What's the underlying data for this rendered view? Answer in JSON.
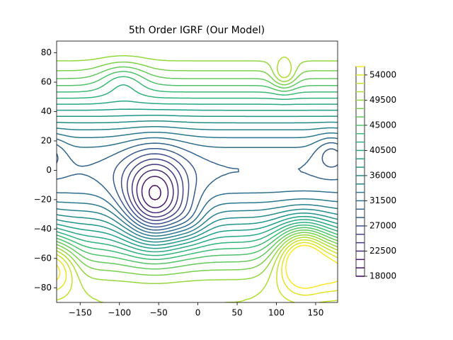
{
  "chart_data": {
    "type": "contour",
    "title": "5th Order IGRF (Our Model)",
    "colormap": "viridis",
    "levels": [
      18000,
      19500,
      21000,
      22500,
      24000,
      25500,
      27000,
      28500,
      30000,
      31500,
      33000,
      34500,
      36000,
      37500,
      39000,
      40500,
      42000,
      43500,
      45000,
      46500,
      48000,
      49500,
      51000,
      52500,
      54000,
      55500
    ],
    "xlim": [
      -180,
      178
    ],
    "ylim": [
      -90,
      88
    ],
    "xticks": [
      {
        "value": -150,
        "label": "−150"
      },
      {
        "value": -100,
        "label": "−100"
      },
      {
        "value": -50,
        "label": "−50"
      },
      0,
      50,
      100,
      150
    ],
    "yticks": [
      {
        "value": -80,
        "label": "−80"
      },
      {
        "value": -60,
        "label": "−60"
      },
      {
        "value": -40,
        "label": "−40"
      },
      {
        "value": -20,
        "label": "−20"
      },
      0,
      20,
      40,
      60,
      80
    ],
    "clim": [
      18000,
      55500
    ],
    "cticks": [
      18000,
      22500,
      27000,
      31500,
      36000,
      40500,
      45000,
      49500,
      54000
    ]
  }
}
